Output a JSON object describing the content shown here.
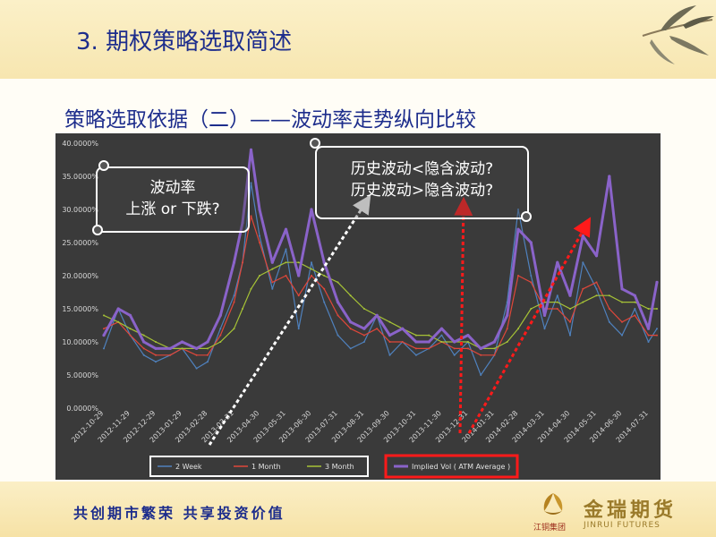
{
  "slide": {
    "title": "3. 期权策略选取简述",
    "subtitle": "策略选取依据（二）——波动率走势纵向比较"
  },
  "callouts": {
    "left": [
      "波动率",
      "上涨 or 下跌?"
    ],
    "right": [
      "历史波动<隐含波动?",
      "历史波动>隐含波动?"
    ]
  },
  "footer": {
    "slogan": "共创期市繁荣   共享投资价值",
    "logo_name": "金瑞期货",
    "logo_group": "江铜集团",
    "logo_en": "JINRUI FUTURES"
  },
  "colors": {
    "plot_bg": "#3a3a3a",
    "series_2week": "#4f81bd",
    "series_1month": "#e0473a",
    "series_3month": "#a6c236",
    "series_iv": "#8a63c9",
    "title": "#1d2d8c"
  },
  "chart_data": {
    "type": "line",
    "grid": false,
    "legend_position": "bottom",
    "ylim": [
      0,
      40
    ],
    "yticks": [
      "0.0000%",
      "5.0000%",
      "10.0000%",
      "15.0000%",
      "20.0000%",
      "25.0000%",
      "30.0000%",
      "35.0000%",
      "40.0000%"
    ],
    "xticks": [
      "2012-10-29",
      "2012-11-29",
      "2012-12-29",
      "2013-01-29",
      "2013-02-28",
      "2013-03-31",
      "2013-04-30",
      "2013-05-31",
      "2013-06-30",
      "2013-07-31",
      "2013-08-31",
      "2013-09-30",
      "2013-10-31",
      "2013-11-30",
      "2013-12-31",
      "2014-01-31",
      "2014-02-28",
      "2014-03-31",
      "2014-04-30",
      "2014-05-31",
      "2014-06-30",
      "2014-07-31"
    ],
    "x": [
      "2012-10-29",
      "2012-11-15",
      "2012-11-29",
      "2012-12-15",
      "2012-12-29",
      "2013-01-15",
      "2013-01-29",
      "2013-02-15",
      "2013-02-28",
      "2013-03-15",
      "2013-03-31",
      "2013-04-10",
      "2013-04-20",
      "2013-04-30",
      "2013-05-15",
      "2013-05-31",
      "2013-06-15",
      "2013-06-30",
      "2013-07-15",
      "2013-07-31",
      "2013-08-15",
      "2013-08-31",
      "2013-09-15",
      "2013-09-30",
      "2013-10-15",
      "2013-10-31",
      "2013-11-15",
      "2013-11-30",
      "2013-12-15",
      "2013-12-31",
      "2014-01-15",
      "2014-01-31",
      "2014-02-15",
      "2014-02-28",
      "2014-03-15",
      "2014-03-31",
      "2014-04-15",
      "2014-04-30",
      "2014-05-15",
      "2014-05-31",
      "2014-06-15",
      "2014-06-30",
      "2014-07-15",
      "2014-07-31",
      "2014-08-10"
    ],
    "series": [
      {
        "name": "2 Week",
        "values": [
          9,
          15,
          11,
          8,
          7,
          8,
          9,
          6,
          7,
          12,
          17,
          22,
          34,
          26,
          18,
          24,
          12,
          22,
          16,
          11,
          9,
          10,
          14,
          8,
          10,
          8,
          9,
          11,
          8,
          10,
          5,
          8,
          16,
          30,
          20,
          12,
          17,
          11,
          22,
          18,
          13,
          11,
          15,
          10,
          12
        ]
      },
      {
        "name": "1 Month",
        "values": [
          12,
          13,
          11,
          9,
          8,
          8,
          9,
          8,
          8,
          11,
          16,
          22,
          29,
          25,
          19,
          20,
          17,
          20,
          18,
          14,
          12,
          11,
          12,
          10,
          10,
          9,
          9,
          10,
          9,
          9,
          8,
          8,
          12,
          20,
          19,
          15,
          15,
          13,
          18,
          19,
          15,
          13,
          14,
          11,
          11
        ]
      },
      {
        "name": "3 Month",
        "values": [
          14,
          13,
          12,
          11,
          10,
          9,
          9,
          9,
          9,
          10,
          12,
          15,
          18,
          20,
          21,
          22,
          22,
          21,
          20,
          19,
          17,
          15,
          14,
          13,
          12,
          11,
          11,
          10,
          10,
          10,
          9,
          9,
          10,
          12,
          15,
          16,
          16,
          15,
          16,
          17,
          17,
          16,
          16,
          15,
          15
        ]
      },
      {
        "name": "Implied Vol ( ATM Average )",
        "values": [
          11,
          15,
          14,
          10,
          9,
          9,
          10,
          9,
          10,
          14,
          22,
          28,
          39,
          30,
          22,
          27,
          20,
          30,
          22,
          16,
          13,
          12,
          14,
          11,
          12,
          10,
          10,
          12,
          10,
          11,
          9,
          10,
          14,
          27,
          25,
          14,
          22,
          17,
          26,
          23,
          35,
          18,
          17,
          12,
          19
        ]
      }
    ]
  }
}
